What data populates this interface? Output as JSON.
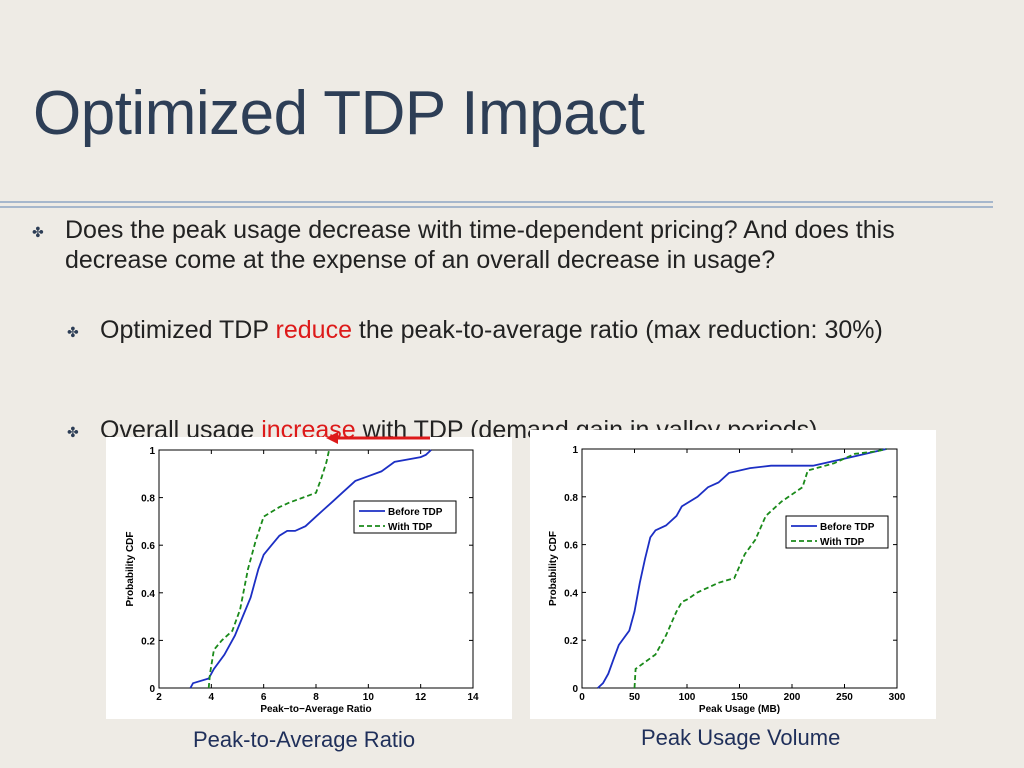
{
  "slide": {
    "title": "Optimized TDP Impact",
    "bullet1": "Does the peak usage decrease with time-dependent pricing? And does this decrease come at the expense of an overall decrease in usage?",
    "sub1": {
      "before": "Optimized TDP ",
      "highlight": "reduce",
      "after": " the peak-to-average ratio (max reduction: 30%)"
    },
    "sub2": {
      "before": "Overall usage ",
      "highlight": "increase",
      "after": " with TDP (demand gain in valley periods)"
    },
    "bullet_icon": "fleuron-bullet-icon",
    "arrow_icon": "red-left-arrow-icon",
    "colors": {
      "title": "#2d3e56",
      "highlight": "#dd1a1a",
      "before": "#1c2fc4",
      "with": "#1a8a1a"
    }
  },
  "captions": {
    "left": "Peak-to-Average Ratio",
    "right": "Peak Usage Volume"
  },
  "chart_data": [
    {
      "type": "line",
      "xlabel": "Peak−to−Average Ratio",
      "ylabel": "Probability CDF",
      "xlim": [
        2,
        14
      ],
      "ylim": [
        0,
        1
      ],
      "xticks": [
        2,
        4,
        6,
        8,
        10,
        12,
        14
      ],
      "yticks": [
        0,
        0.2,
        0.4,
        0.6,
        0.8,
        1
      ],
      "legend_position": "top-right",
      "series": [
        {
          "name": "Before TDP",
          "style": "solid",
          "color": "#1c2fc4",
          "x": [
            3.2,
            3.3,
            3.9,
            4.1,
            4.5,
            4.9,
            5.2,
            5.5,
            5.8,
            6.0,
            6.3,
            6.6,
            6.9,
            7.2,
            7.6,
            8.0,
            8.3,
            8.6,
            9.0,
            9.5,
            10.0,
            10.5,
            11.0,
            11.5,
            12.0,
            12.2,
            12.4
          ],
          "y": [
            0.0,
            0.02,
            0.04,
            0.08,
            0.14,
            0.22,
            0.3,
            0.38,
            0.5,
            0.56,
            0.6,
            0.64,
            0.66,
            0.66,
            0.68,
            0.72,
            0.75,
            0.78,
            0.82,
            0.87,
            0.89,
            0.91,
            0.95,
            0.96,
            0.97,
            0.98,
            1.0
          ]
        },
        {
          "name": "With TDP",
          "style": "dashed",
          "color": "#1a8a1a",
          "x": [
            3.9,
            3.95,
            4.1,
            4.4,
            4.8,
            5.1,
            5.4,
            5.7,
            6.0,
            6.3,
            6.6,
            7.0,
            7.5,
            8.0,
            8.2,
            8.4,
            8.5
          ],
          "y": [
            0.0,
            0.06,
            0.16,
            0.2,
            0.24,
            0.33,
            0.5,
            0.62,
            0.72,
            0.74,
            0.76,
            0.78,
            0.8,
            0.82,
            0.88,
            0.95,
            1.0
          ]
        }
      ]
    },
    {
      "type": "line",
      "xlabel": "Peak Usage (MB)",
      "ylabel": "Probability CDF",
      "xlim": [
        0,
        300
      ],
      "ylim": [
        0,
        1
      ],
      "xticks": [
        0,
        50,
        100,
        150,
        200,
        250,
        300
      ],
      "yticks": [
        0,
        0.2,
        0.4,
        0.6,
        0.8,
        1
      ],
      "legend_position": "top-right",
      "series": [
        {
          "name": "Before TDP",
          "style": "solid",
          "color": "#1c2fc4",
          "x": [
            15,
            20,
            25,
            30,
            35,
            45,
            50,
            55,
            60,
            65,
            70,
            80,
            90,
            95,
            110,
            120,
            130,
            140,
            160,
            180,
            220,
            240,
            260,
            280,
            290
          ],
          "y": [
            0.0,
            0.02,
            0.06,
            0.12,
            0.18,
            0.24,
            0.32,
            0.44,
            0.54,
            0.63,
            0.66,
            0.68,
            0.72,
            0.76,
            0.8,
            0.84,
            0.86,
            0.9,
            0.92,
            0.93,
            0.93,
            0.95,
            0.97,
            0.99,
            1.0
          ]
        },
        {
          "name": "With TDP",
          "style": "dashed",
          "color": "#1a8a1a",
          "x": [
            50,
            51,
            70,
            80,
            90,
            95,
            100,
            110,
            130,
            145,
            155,
            165,
            175,
            190,
            210,
            215,
            240,
            260,
            280,
            290
          ],
          "y": [
            0.0,
            0.08,
            0.14,
            0.22,
            0.32,
            0.36,
            0.37,
            0.4,
            0.44,
            0.46,
            0.56,
            0.62,
            0.72,
            0.78,
            0.84,
            0.91,
            0.94,
            0.98,
            0.99,
            1.0
          ]
        }
      ]
    }
  ]
}
